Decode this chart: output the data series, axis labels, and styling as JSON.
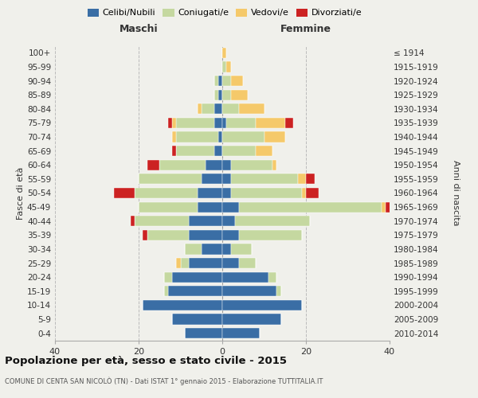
{
  "age_groups": [
    "0-4",
    "5-9",
    "10-14",
    "15-19",
    "20-24",
    "25-29",
    "30-34",
    "35-39",
    "40-44",
    "45-49",
    "50-54",
    "55-59",
    "60-64",
    "65-69",
    "70-74",
    "75-79",
    "80-84",
    "85-89",
    "90-94",
    "95-99",
    "100+"
  ],
  "birth_years": [
    "2010-2014",
    "2005-2009",
    "2000-2004",
    "1995-1999",
    "1990-1994",
    "1985-1989",
    "1980-1984",
    "1975-1979",
    "1970-1974",
    "1965-1969",
    "1960-1964",
    "1955-1959",
    "1950-1954",
    "1945-1949",
    "1940-1944",
    "1935-1939",
    "1930-1934",
    "1925-1929",
    "1920-1924",
    "1915-1919",
    "≤ 1914"
  ],
  "maschi": {
    "celibi": [
      9,
      12,
      19,
      13,
      12,
      8,
      5,
      8,
      8,
      6,
      6,
      5,
      4,
      2,
      1,
      2,
      2,
      1,
      1,
      0,
      0
    ],
    "coniugati": [
      0,
      0,
      0,
      1,
      2,
      2,
      4,
      10,
      13,
      14,
      15,
      15,
      11,
      9,
      10,
      9,
      3,
      1,
      1,
      0,
      0
    ],
    "vedovi": [
      0,
      0,
      0,
      0,
      0,
      1,
      0,
      0,
      0,
      0,
      0,
      0,
      0,
      0,
      1,
      1,
      1,
      0,
      0,
      0,
      0
    ],
    "divorziati": [
      0,
      0,
      0,
      0,
      0,
      0,
      0,
      1,
      1,
      0,
      5,
      0,
      3,
      1,
      0,
      1,
      0,
      0,
      0,
      0,
      0
    ]
  },
  "femmine": {
    "celibi": [
      9,
      14,
      19,
      13,
      11,
      4,
      2,
      4,
      3,
      4,
      2,
      2,
      2,
      0,
      0,
      1,
      0,
      0,
      0,
      0,
      0
    ],
    "coniugati": [
      0,
      0,
      0,
      1,
      2,
      4,
      5,
      15,
      18,
      34,
      17,
      16,
      10,
      8,
      10,
      7,
      4,
      2,
      2,
      1,
      0
    ],
    "vedovi": [
      0,
      0,
      0,
      0,
      0,
      0,
      0,
      0,
      0,
      1,
      1,
      2,
      1,
      4,
      5,
      7,
      6,
      4,
      3,
      1,
      1
    ],
    "divorziati": [
      0,
      0,
      0,
      0,
      0,
      0,
      0,
      0,
      0,
      2,
      3,
      2,
      0,
      0,
      0,
      2,
      0,
      0,
      0,
      0,
      0
    ]
  },
  "colors": {
    "celibi": "#3A6EA5",
    "coniugati": "#C5D8A0",
    "vedovi": "#F5C96A",
    "divorziati": "#CC2222"
  },
  "xlim": 40,
  "title": "Popolazione per età, sesso e stato civile - 2015",
  "subtitle": "COMUNE DI CENTA SAN NICOLÒ (TN) - Dati ISTAT 1° gennaio 2015 - Elaborazione TUTTITALIA.IT",
  "ylabel_left": "Fasce di età",
  "ylabel_right": "Anni di nascita",
  "xlabel_maschi": "Maschi",
  "xlabel_femmine": "Femmine",
  "legend_labels": [
    "Celibi/Nubili",
    "Coniugati/e",
    "Vedovi/e",
    "Divorziati/e"
  ],
  "bg_color": "#f0f0eb"
}
